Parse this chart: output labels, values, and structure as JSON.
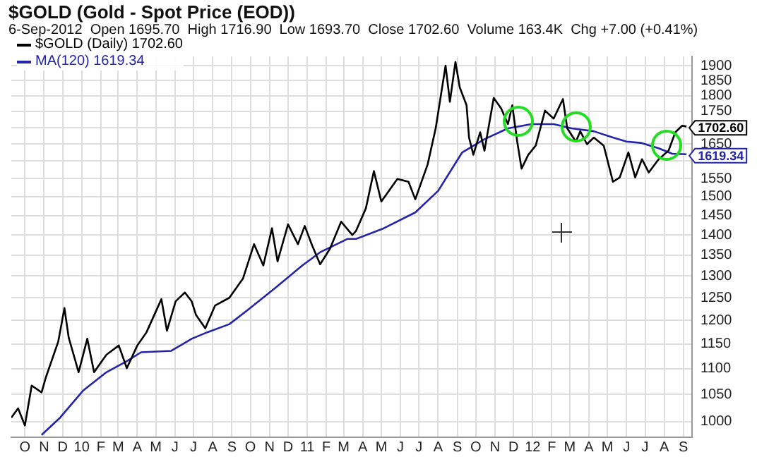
{
  "chart_data": {
    "type": "line",
    "title": "$GOLD (Gold - Spot Price (EOD))",
    "subtitle": "6-Sep-2012  Open 1695.70  High 1716.90  Low 1693.70  Close 1702.60  Volume 163.4K  Chg +7.00 (+0.41%)",
    "series": [
      {
        "name": "$GOLD (Daily) 1702.60",
        "color": "#000000",
        "x": [
          "2009-09-09",
          "2009-09-20",
          "2009-10-01",
          "2009-10-12",
          "2009-10-28",
          "2009-11-04",
          "2009-11-24",
          "2009-12-04",
          "2009-12-11",
          "2009-12-27",
          "2010-01-10",
          "2010-01-21",
          "2010-02-10",
          "2010-03-02",
          "2010-03-15",
          "2010-04-01",
          "2010-04-16",
          "2010-05-10",
          "2010-05-19",
          "2010-06-02",
          "2010-06-17",
          "2010-06-28",
          "2010-07-05",
          "2010-07-20",
          "2010-08-05",
          "2010-08-28",
          "2010-09-19",
          "2010-10-07",
          "2010-10-22",
          "2010-11-05",
          "2010-11-14",
          "2010-12-01",
          "2010-12-17",
          "2010-12-28",
          "2011-01-09",
          "2011-01-22",
          "2011-02-07",
          "2011-02-25",
          "2011-03-15",
          "2011-03-21",
          "2011-04-06",
          "2011-04-19",
          "2011-05-01",
          "2011-05-27",
          "2011-06-14",
          "2011-06-25",
          "2011-07-15",
          "2011-07-28",
          "2011-08-13",
          "2011-08-20",
          "2011-08-29",
          "2011-09-05",
          "2011-09-16",
          "2011-09-20",
          "2011-09-27",
          "2011-10-08",
          "2011-10-15",
          "2011-10-30",
          "2011-11-11",
          "2011-11-22",
          "2011-11-29",
          "2011-12-07",
          "2011-12-14",
          "2011-12-25",
          "2012-01-06",
          "2012-01-21",
          "2012-02-04",
          "2012-02-19",
          "2012-02-26",
          "2012-03-11",
          "2012-03-18",
          "2012-03-29",
          "2012-04-09",
          "2012-04-25",
          "2012-05-10",
          "2012-05-21",
          "2012-06-04",
          "2012-06-15",
          "2012-06-26",
          "2012-07-07",
          "2012-07-23",
          "2012-08-08",
          "2012-08-19",
          "2012-08-30",
          "2012-09-06"
        ],
        "values": [
          1007,
          1024,
          993,
          1067,
          1054,
          1083,
          1155,
          1227,
          1163,
          1093,
          1161,
          1093,
          1128,
          1147,
          1101,
          1147,
          1175,
          1247,
          1178,
          1242,
          1262,
          1242,
          1212,
          1183,
          1233,
          1250,
          1294,
          1377,
          1325,
          1417,
          1335,
          1427,
          1377,
          1423,
          1374,
          1328,
          1366,
          1434,
          1400,
          1410,
          1469,
          1571,
          1487,
          1549,
          1541,
          1493,
          1590,
          1697,
          1900,
          1780,
          1913,
          1827,
          1769,
          1669,
          1618,
          1685,
          1630,
          1793,
          1759,
          1710,
          1769,
          1657,
          1578,
          1618,
          1645,
          1752,
          1727,
          1789,
          1697,
          1657,
          1688,
          1649,
          1669,
          1645,
          1541,
          1553,
          1625,
          1553,
          1605,
          1567,
          1605,
          1630,
          1685,
          1705,
          1702.6
        ]
      },
      {
        "name": "MA(120) 1619.34",
        "color": "#2424a8",
        "x": [
          "2009-10-28",
          "2009-11-27",
          "2010-01-03",
          "2010-02-10",
          "2010-03-15",
          "2010-04-07",
          "2010-05-26",
          "2010-06-28",
          "2010-07-24",
          "2010-08-28",
          "2010-09-25",
          "2010-11-10",
          "2010-12-24",
          "2011-01-22",
          "2011-03-07",
          "2011-03-21",
          "2011-05-05",
          "2011-06-25",
          "2011-08-01",
          "2011-09-09",
          "2011-10-15",
          "2011-11-22",
          "2011-12-30",
          "2012-02-04",
          "2012-03-04",
          "2012-04-09",
          "2012-05-10",
          "2012-06-01",
          "2012-06-24",
          "2012-07-23",
          "2012-08-14",
          "2012-09-06"
        ],
        "values": [
          976,
          1007,
          1057,
          1093,
          1115,
          1133,
          1136,
          1161,
          1175,
          1192,
          1221,
          1272,
          1325,
          1357,
          1390,
          1390,
          1417,
          1458,
          1516,
          1625,
          1664,
          1697,
          1710,
          1710,
          1697,
          1688,
          1669,
          1657,
          1653,
          1637,
          1621,
          1619.34
        ]
      }
    ],
    "annotations": [
      {
        "text": "1702.60",
        "x": "2012-09-06",
        "y": 1702.6
      },
      {
        "text": "1619.34",
        "x": "2012-09-06",
        "y": 1619.34
      }
    ],
    "log": "y",
    "grid": true,
    "legend": "top left",
    "line_style": "solid",
    "marker": "none",
    "ylim": [
      972,
      1932
    ],
    "yticks": [
      1000,
      1050,
      1100,
      1150,
      1200,
      1250,
      1300,
      1350,
      1400,
      1450,
      1500,
      1550,
      {
        "value": 1600,
        "label": null
      },
      1650,
      {
        "value": 1700,
        "label": null
      },
      1750,
      1800,
      1850,
      1900
    ],
    "xlim": [
      "2009-09-09",
      "2012-09-15"
    ],
    "xticks": [
      {
        "value": "2009-10-01",
        "label": "O"
      },
      {
        "value": "2009-11-01",
        "label": "N"
      },
      {
        "value": "2009-12-01",
        "label": "D"
      },
      {
        "value": "2010-01-01",
        "label": "10"
      },
      {
        "value": "2010-02-01",
        "label": "F"
      },
      {
        "value": "2010-03-01",
        "label": "M"
      },
      {
        "value": "2010-04-01",
        "label": "A"
      },
      {
        "value": "2010-05-01",
        "label": "M"
      },
      {
        "value": "2010-06-01",
        "label": "J"
      },
      {
        "value": "2010-07-01",
        "label": "J"
      },
      {
        "value": "2010-08-01",
        "label": "A"
      },
      {
        "value": "2010-09-01",
        "label": "S"
      },
      {
        "value": "2010-10-01",
        "label": "O"
      },
      {
        "value": "2010-11-01",
        "label": "N"
      },
      {
        "value": "2010-12-01",
        "label": "D"
      },
      {
        "value": "2011-01-01",
        "label": "11"
      },
      {
        "value": "2011-02-01",
        "label": "F"
      },
      {
        "value": "2011-03-01",
        "label": "M"
      },
      {
        "value": "2011-04-01",
        "label": "A"
      },
      {
        "value": "2011-05-01",
        "label": "M"
      },
      {
        "value": "2011-06-01",
        "label": "J"
      },
      {
        "value": "2011-07-01",
        "label": "J"
      },
      {
        "value": "2011-08-01",
        "label": "A"
      },
      {
        "value": "2011-09-01",
        "label": "S"
      },
      {
        "value": "2011-10-01",
        "label": "O"
      },
      {
        "value": "2011-11-01",
        "label": "N"
      },
      {
        "value": "2011-12-01",
        "label": "D"
      },
      {
        "value": "2012-01-01",
        "label": "12"
      },
      {
        "value": "2012-02-01",
        "label": "F"
      },
      {
        "value": "2012-03-01",
        "label": "M"
      },
      {
        "value": "2012-04-01",
        "label": "A"
      },
      {
        "value": "2012-05-01",
        "label": "M"
      },
      {
        "value": "2012-06-01",
        "label": "J"
      },
      {
        "value": "2012-07-01",
        "label": "J"
      },
      {
        "value": "2012-08-01",
        "label": "A"
      },
      {
        "value": "2012-09-01",
        "label": "S"
      }
    ]
  }
}
